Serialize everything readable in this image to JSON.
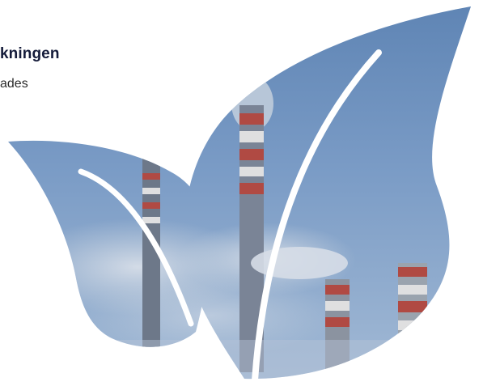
{
  "text": {
    "heading": "kningen",
    "subline": "ades"
  },
  "illustration": {
    "subject": "leaf-shaped-photo-of-industrial-smokestacks",
    "colors": {
      "sky_top": "#5e84b4",
      "sky_mid": "#7b9cc6",
      "sky_low": "#a3bad5",
      "chimney_red": "#b04a43",
      "chimney_white": "#dfdfe0",
      "chimney_grey": "#6d7889",
      "smoke": "#c9d3df"
    }
  }
}
